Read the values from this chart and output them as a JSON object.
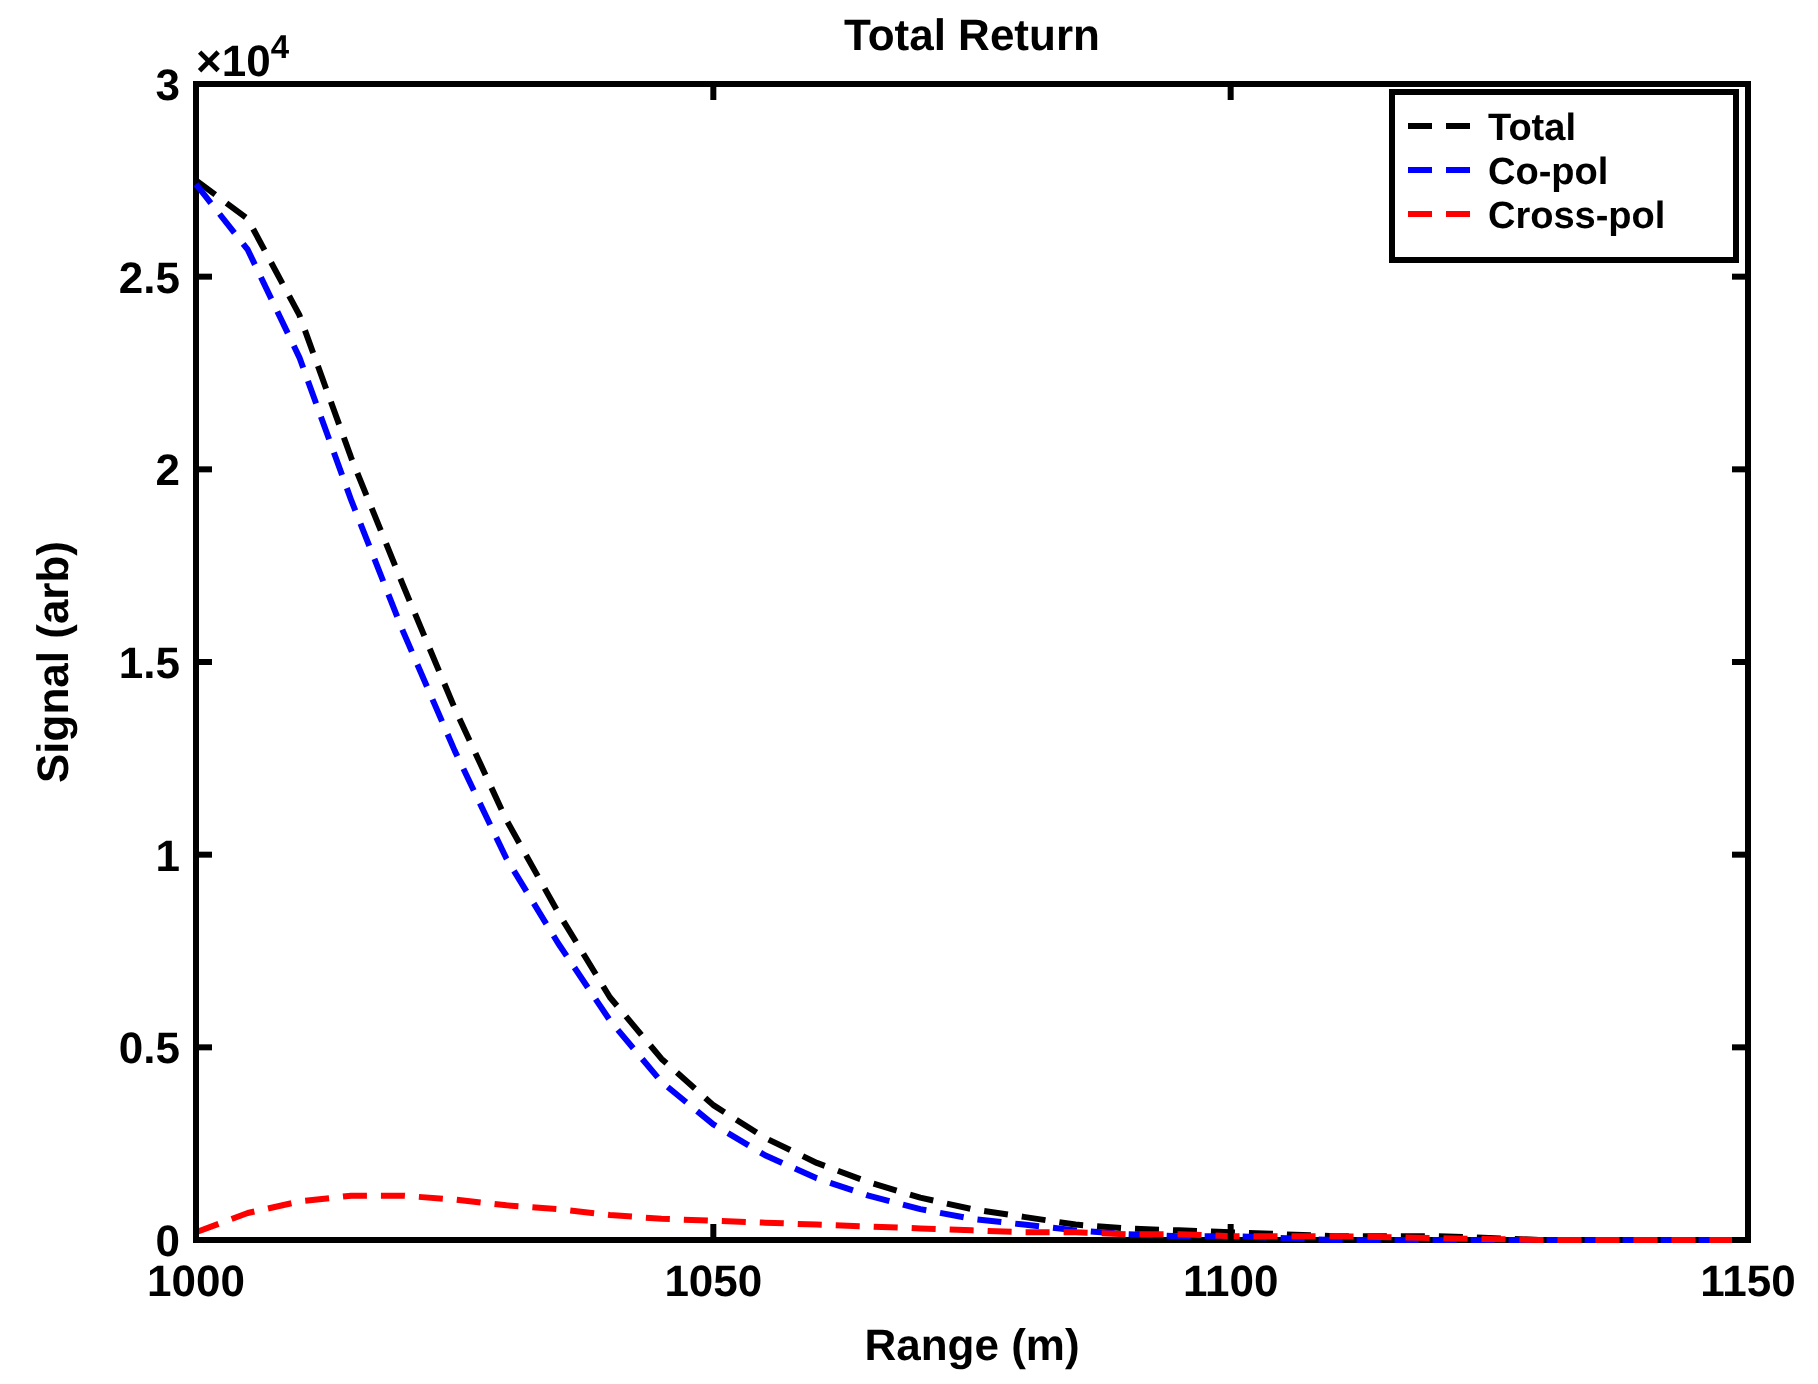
{
  "chart_data": {
    "type": "line",
    "title": "Total Return",
    "xlabel": "Range (m)",
    "ylabel": "Signal (arb)",
    "annotations": [
      "×10$^{4}$"
    ],
    "xlim": [
      1000,
      1150
    ],
    "xticks": [
      1000,
      1050,
      1100,
      1150
    ],
    "ylim": [
      0,
      3
    ],
    "yticks": [
      0,
      0.5,
      1,
      1.5,
      2,
      2.5,
      3
    ],
    "x": [
      1000,
      1005,
      1010,
      1015,
      1020,
      1025,
      1030,
      1035,
      1040,
      1045,
      1050,
      1055,
      1060,
      1065,
      1070,
      1075,
      1080,
      1085,
      1090,
      1095,
      1100,
      1110,
      1120,
      1130,
      1150
    ],
    "series": [
      {
        "name": "Total",
        "color": "#000000",
        "values": [
          2.75,
          2.65,
          2.4,
          2.03,
          1.7,
          1.38,
          1.09,
          0.85,
          0.63,
          0.47,
          0.35,
          0.265,
          0.2,
          0.15,
          0.11,
          0.08,
          0.06,
          0.04,
          0.03,
          0.025,
          0.02,
          0.01,
          0.01,
          0,
          0
        ]
      },
      {
        "name": "Co-pol",
        "color": "#0000ff",
        "values": [
          2.74,
          2.57,
          2.29,
          1.92,
          1.58,
          1.27,
          0.99,
          0.77,
          0.57,
          0.41,
          0.3,
          0.22,
          0.16,
          0.115,
          0.08,
          0.055,
          0.04,
          0.025,
          0.015,
          0.01,
          0.01,
          0,
          0,
          0,
          0
        ]
      },
      {
        "name": "Cross-pol",
        "color": "#ff0000",
        "values": [
          0.02,
          0.07,
          0.1,
          0.115,
          0.115,
          0.105,
          0.09,
          0.08,
          0.065,
          0.055,
          0.05,
          0.045,
          0.04,
          0.035,
          0.03,
          0.025,
          0.02,
          0.02,
          0.015,
          0.015,
          0.01,
          0.01,
          0.005,
          0,
          0
        ]
      }
    ],
    "legend": "top right",
    "line_style": "dashed",
    "grid": false
  }
}
